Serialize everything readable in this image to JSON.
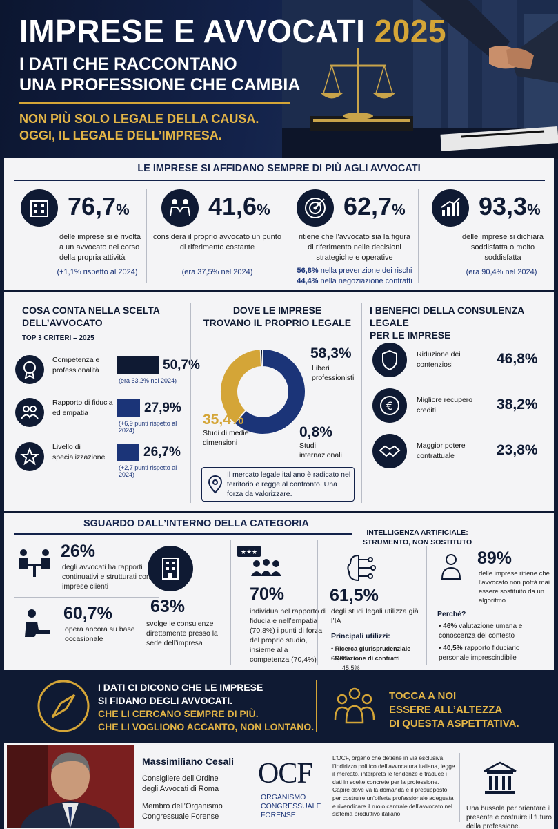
{
  "hero": {
    "title": "IMPRESE E AVVOCATI",
    "year": "2025",
    "subtitle_1": "I DATI CHE RACCONTANO",
    "subtitle_2": "UNA PROFESSIONE CHE CAMBIA",
    "tagline_1": "NON PIÙ SOLO LEGALE DELLA CAUSA.",
    "tagline_2": "OGGI, IL LEGALE DELL’IMPRESA."
  },
  "section1": {
    "title": "LE IMPRESE SI AFFIDANO SEMPRE DI PIÙ AGLI AVVOCATI",
    "stats": [
      {
        "icon": "building-icon",
        "value": "76,7",
        "unit": "%",
        "desc": "delle imprese si è rivolta a un avvocato nel corso della propria attività",
        "note": "(+1,1% rispetto al 2024)"
      },
      {
        "icon": "handshake-people-icon",
        "value": "41,6",
        "unit": "%",
        "desc": "considera il proprio avvocato un punto di riferimento costante",
        "note": "(era 37,5% nel 2024)"
      },
      {
        "icon": "target-icon",
        "value": "62,7",
        "unit": "%",
        "desc": "ritiene che l’avvocato sia la figura di riferimento nelle decisioni strategiche e operative",
        "sub1_value": "56,8%",
        "sub1_text": " nella prevenzione dei rischi",
        "sub2_value": "44,4%",
        "sub2_text": " nella negoziazione contratti"
      },
      {
        "icon": "growth-chart-icon",
        "value": "93,3",
        "unit": "%",
        "desc": "delle imprese si dichiara soddisfatta o molto soddisfatta",
        "note": "(era 90,4% nel 2024)"
      }
    ]
  },
  "criteria": {
    "title_1": "COSA CONTA NELLA SCELTA",
    "title_2": "DELL’AVVOCATO",
    "subtitle": "TOP 3 CRITERI – 2025",
    "items": [
      {
        "icon": "award-icon",
        "label": "Competenza e professionalità",
        "value": 50.7,
        "value_label": "50,7%",
        "note": "(era 63,2% nel 2024)"
      },
      {
        "icon": "people-icon",
        "label": "Rapporto di fiducia ed empatia",
        "value": 27.9,
        "value_label": "27,9%",
        "note": "(+6,9 punti rispetto al 2024)"
      },
      {
        "icon": "star-icon",
        "label": "Livello di specializzazione",
        "value": 26.7,
        "value_label": "26,7%",
        "note": "(+2,7 punti rispetto al 2024)"
      }
    ]
  },
  "where": {
    "title_1": "DOVE LE IMPRESE",
    "title_2": "TROVANO IL PROPRIO LEGALE",
    "callout": "Il mercato legale italiano è radicato nel territorio e regge al confronto. Una forza da valorizzare."
  },
  "chart_data": {
    "type": "pie",
    "categories": [
      "Liberi professionisti",
      "Studi di medie dimensioni",
      "Studi internazionali"
    ],
    "values": [
      58.3,
      35.4,
      0.8
    ],
    "labels": [
      "58,3%",
      "35,4%",
      "0,8%"
    ],
    "colors": [
      "#1b3478",
      "#d4a537",
      "#0f1a33"
    ]
  },
  "benefits": {
    "title_1": "I BENEFICI DELLA CONSULENZA LEGALE",
    "title_2": "PER LE IMPRESE",
    "items": [
      {
        "icon": "shield-icon",
        "label": "Riduzione dei contenziosi",
        "value": "46,8%"
      },
      {
        "icon": "euro-icon",
        "label": "Migliore recupero crediti",
        "value": "38,2%"
      },
      {
        "icon": "handshake-icon",
        "label": "Maggior potere contrattuale",
        "value": "23,8%"
      }
    ]
  },
  "section3": {
    "title": "SGUARDO DALL’INTERNO DELLA CATEGORIA",
    "a1_value": "26%",
    "a1_text": "degli avvocati ha rapporti continuativi e strutturati con le imprese clienti",
    "a2_value": "60,7%",
    "a2_text": "opera ancora su base occasionale",
    "b_value": "63%",
    "b_text": "svolge le consulenze direttamente presso la sede dell’impresa",
    "c_value": "70%",
    "c_text": "individua nel rapporto di fiducia e nell’empatia (70,8%) i punti di forza del proprio studio, insieme alla competenza (70,4%)",
    "ai_title_1": "INTELLIGENZA ARTIFICIALE:",
    "ai_title_2": "STRUMENTO, NON SOSTITUTO",
    "d_value": "61,5%",
    "d_text": "degli studi legali utilizza già l’IA",
    "uses_title": "Principali utilizzi:",
    "uses": [
      {
        "label": "Ricerca giurisprudenziale",
        "value": "65,8%"
      },
      {
        "label": "Redazione di contratti",
        "value": "45,5%"
      }
    ],
    "e_value": "89%",
    "e_text": "delle imprese ritiene che l’avvocato non potrà mai essere sostituito da un algoritmo",
    "why": "Perché?",
    "reasons": [
      {
        "value": "46%",
        "text": " valutazione umana e conoscenza del contesto"
      },
      {
        "value": "40,5%",
        "text": " rapporto fiduciario personale imprescindibile"
      }
    ]
  },
  "banner": {
    "line1": "I DATI CI DICONO CHE LE IMPRESE",
    "line2": "SI FIDANO DEGLI AVVOCATI.",
    "line3": "CHE LI CERCANO SEMPRE DI PIÙ.",
    "line4": "CHE LI VOGLIONO ACCANTO, NON LONTANO.",
    "right1": "TOCCA A NOI",
    "right2": "ESSERE ALL’ALTEZZA",
    "right3": "DI QUESTA ASPETTATIVA."
  },
  "footer": {
    "name": "Massimiliano Cesali",
    "role1_a": "Consigliere dell’Ordine",
    "role1_b": "degli Avvocati di Roma",
    "role2_a": "Membro dell’Organismo",
    "role2_b": "Congressuale Forense",
    "ocf": "OCF",
    "ocf_sub_1": "ORGANISMO",
    "ocf_sub_2": "CONGRESSUALE",
    "ocf_sub_3": "FORENSE",
    "paragraph": "L’OCF, organo che detiene in via esclusiva l’indirizzo politico dell’avvocatura italiana, legge il mercato, interpreta le tendenze e traduce i dati in scelte concrete per la professione. Capire dove va la domanda è il presupposto per costruire un’offerta professionale adeguata e rivendicare il ruolo centrale dell’avvocato nel sistema produttivo italiano.",
    "claim": "Una bussola per orientare il presente e costruire il futuro della professione."
  }
}
